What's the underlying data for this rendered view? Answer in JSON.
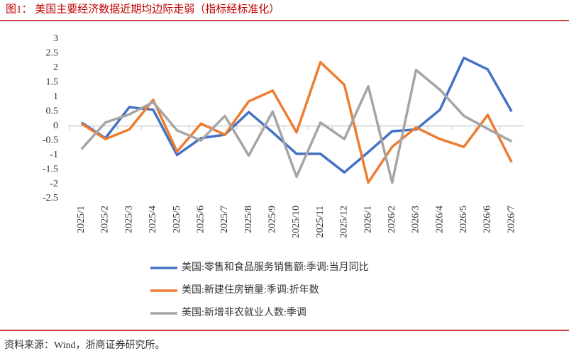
{
  "chart_data": {
    "type": "line",
    "title": "图1：  美国主要经济数据近期均边际走弱（指标经标准化）",
    "source": "资料来源：Wind，浙商证券研究所。",
    "categories": [
      "2025/1",
      "2025/2",
      "2025/3",
      "2025/4",
      "2025/5",
      "2025/6",
      "2025/7",
      "2025/8",
      "2025/9",
      "2025/10",
      "2025/11",
      "2025/12",
      "2026/1",
      "2026/2",
      "2026/3",
      "2026/4",
      "2026/5",
      "2026/6",
      "2026/7"
    ],
    "series": [
      {
        "name": "美国:零售和食品服务销售额:季调:当月同比",
        "color": "#4472c4",
        "values": [
          0.12,
          -0.42,
          0.65,
          0.56,
          -1.0,
          -0.42,
          -0.3,
          0.48,
          -0.22,
          -0.96,
          -0.96,
          -1.6,
          -0.9,
          -0.18,
          -0.12,
          0.56,
          2.35,
          1.95,
          0.5
        ]
      },
      {
        "name": "美国:新建住房销量:季调:折年数",
        "color": "#ed7d31",
        "values": [
          0.08,
          -0.45,
          -0.12,
          0.9,
          -0.88,
          0.08,
          -0.3,
          0.85,
          1.22,
          -0.22,
          2.2,
          1.42,
          -1.95,
          -0.72,
          -0.05,
          -0.45,
          -0.72,
          0.38,
          -1.25
        ]
      },
      {
        "name": "美国:新增非农就业人数:季调",
        "color": "#a5a5a5",
        "values": [
          -0.8,
          0.12,
          0.4,
          0.82,
          -0.15,
          -0.5,
          0.35,
          -1.02,
          0.5,
          -1.75,
          0.12,
          -0.45,
          1.37,
          -1.95,
          1.93,
          1.25,
          0.35,
          -0.1,
          -0.53
        ]
      }
    ],
    "ylim": [
      -2.5,
      3
    ],
    "yticks": [
      -2.5,
      -2,
      -1.5,
      -1,
      -0.5,
      0,
      0.5,
      1,
      1.5,
      2,
      2.5,
      3
    ],
    "grid": false,
    "legend": "bottom"
  }
}
